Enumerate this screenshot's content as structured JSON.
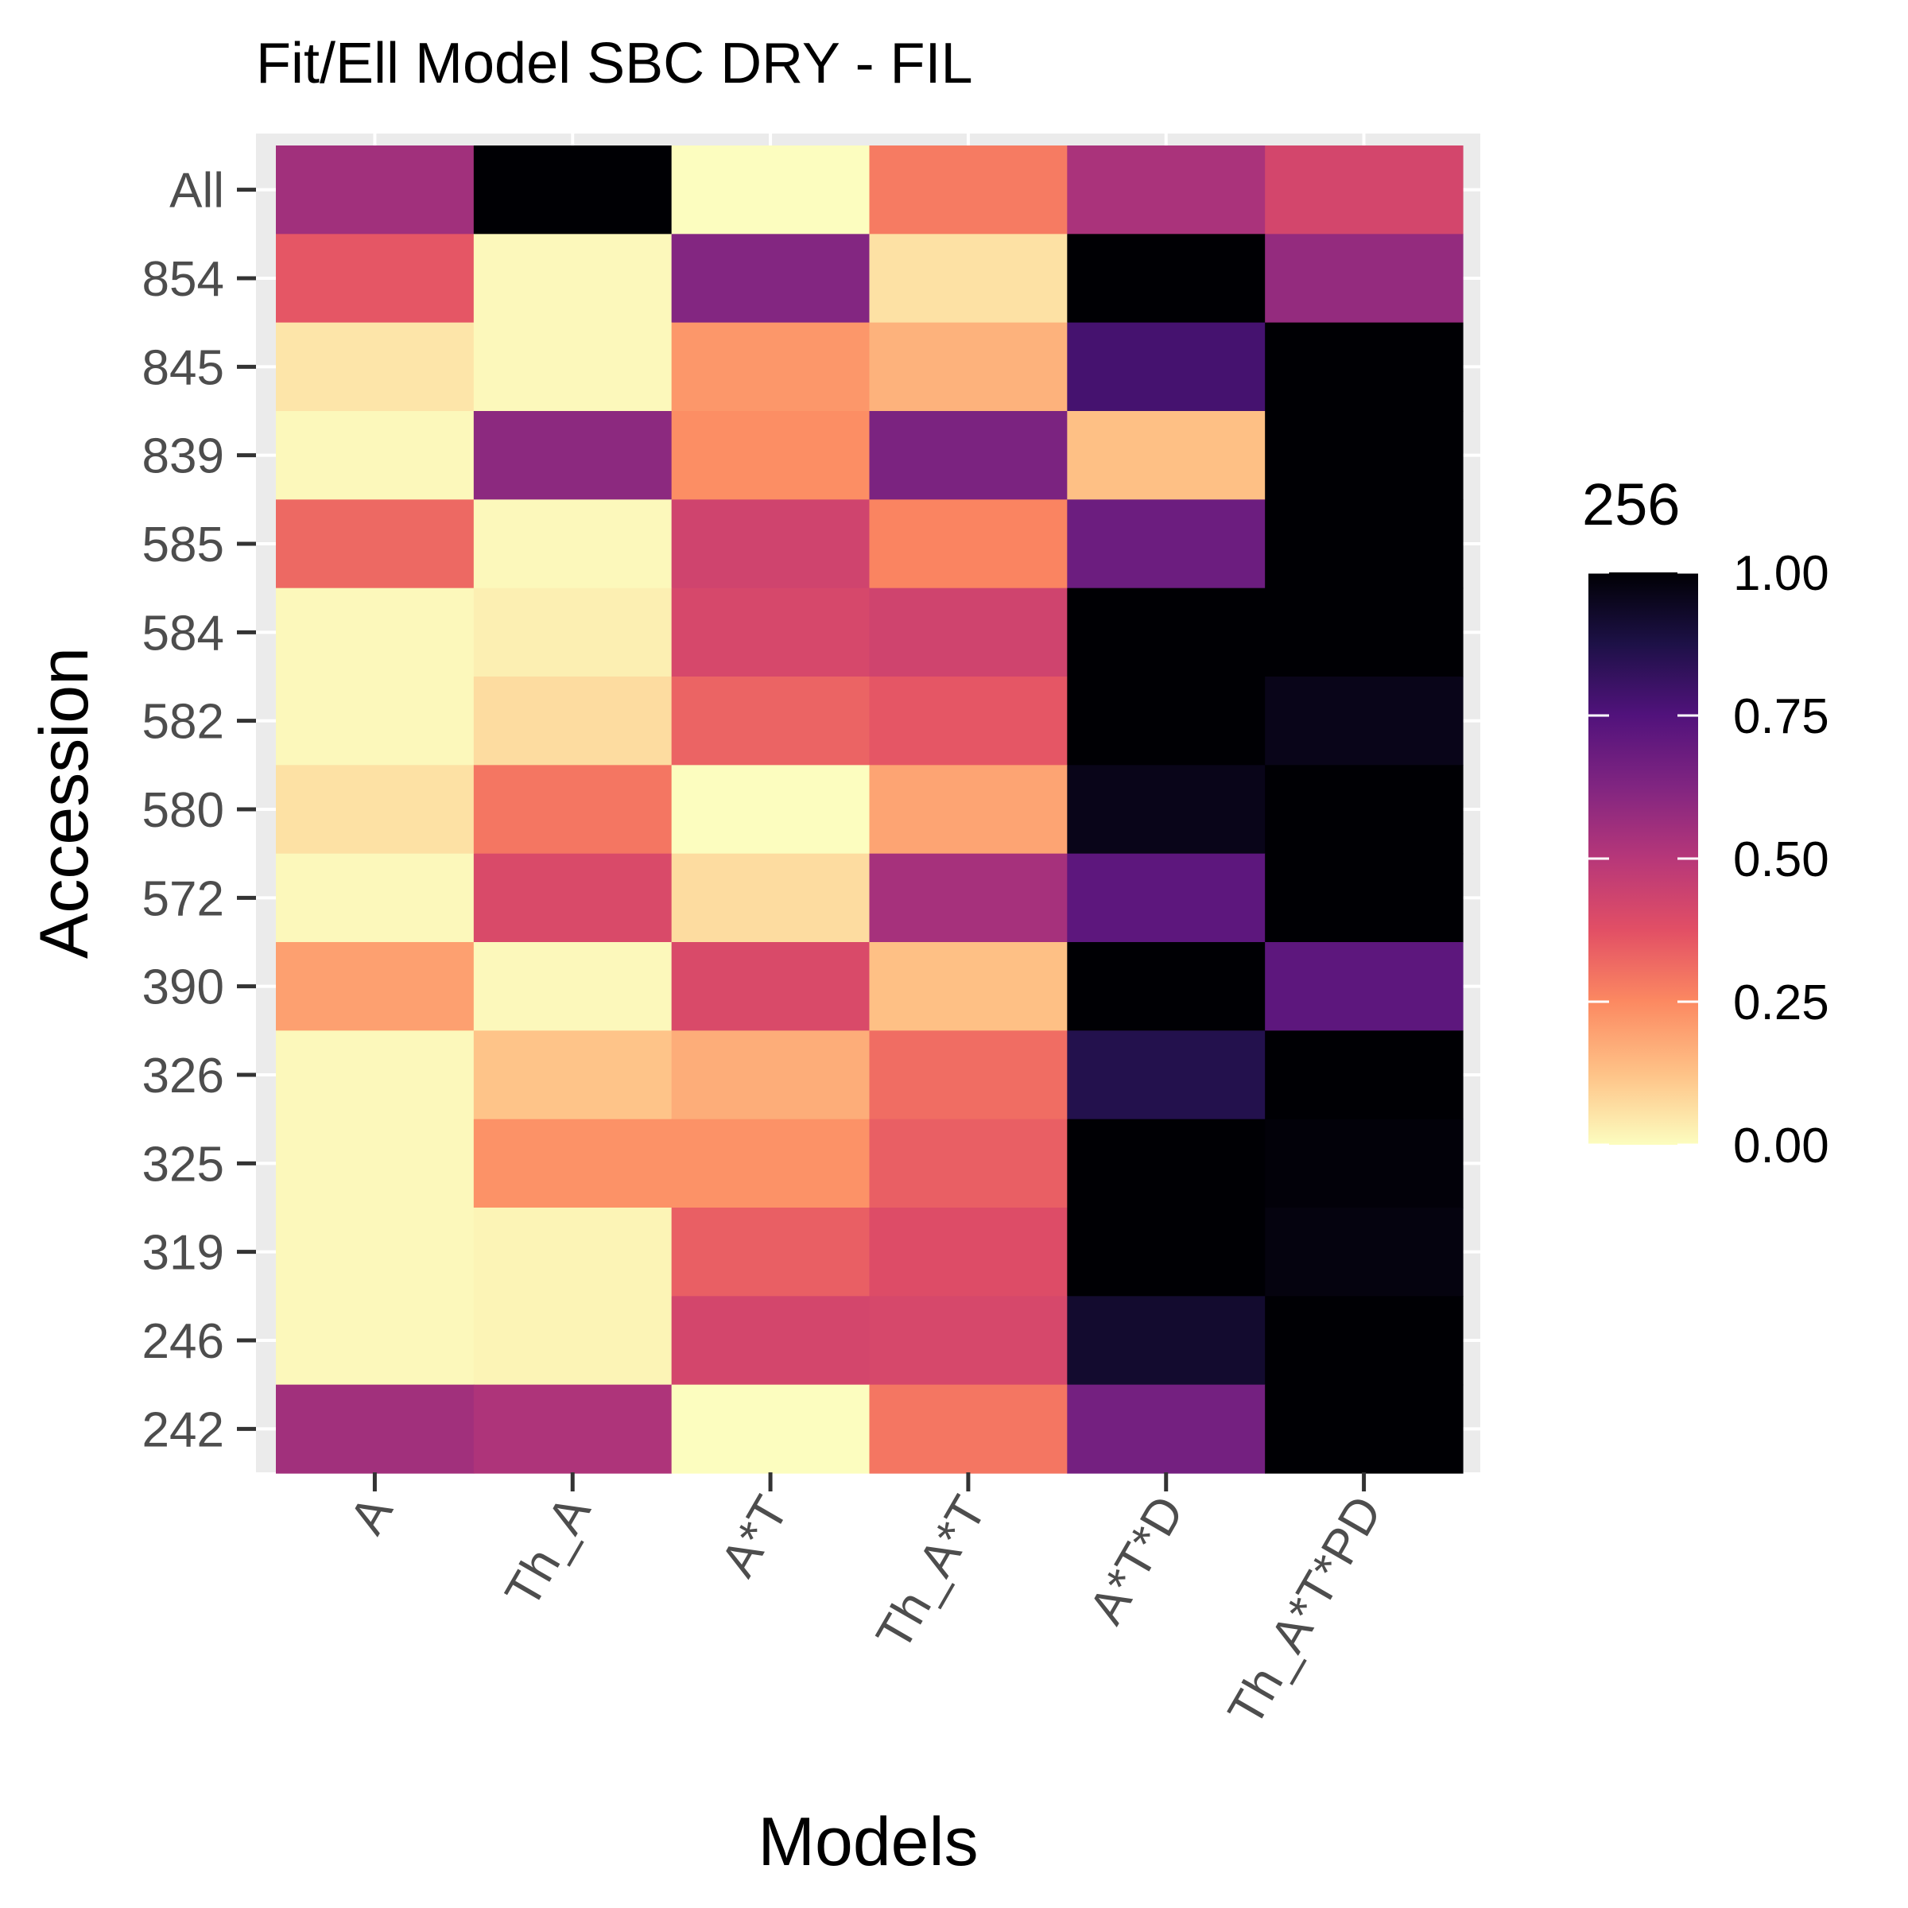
{
  "chart_data": {
    "type": "heatmap",
    "title": "Fit/Ell Model SBC DRY - FIL",
    "xlabel": "Models",
    "ylabel": "Accession",
    "x_categories": [
      "A",
      "Th_A",
      "A*T",
      "Th_A*T",
      "A*T*D",
      "Th_A*T*PD"
    ],
    "y_categories": [
      "All",
      "854",
      "845",
      "839",
      "585",
      "584",
      "582",
      "580",
      "572",
      "390",
      "326",
      "325",
      "319",
      "246",
      "242"
    ],
    "values": [
      [
        0.55,
        1.0,
        0.0,
        0.28,
        0.53,
        0.42
      ],
      [
        0.36,
        0.01,
        0.62,
        0.06,
        1.0,
        0.58
      ],
      [
        0.05,
        0.01,
        0.22,
        0.16,
        0.78,
        1.0
      ],
      [
        0.01,
        0.6,
        0.24,
        0.64,
        0.13,
        1.0
      ],
      [
        0.32,
        0.01,
        0.43,
        0.26,
        0.68,
        1.0
      ],
      [
        0.01,
        0.03,
        0.41,
        0.43,
        1.0,
        1.0
      ],
      [
        0.01,
        0.07,
        0.33,
        0.36,
        1.0,
        0.96
      ],
      [
        0.06,
        0.29,
        0.0,
        0.19,
        0.96,
        1.0
      ],
      [
        0.01,
        0.4,
        0.07,
        0.54,
        0.72,
        1.0
      ],
      [
        0.2,
        0.01,
        0.4,
        0.13,
        1.0,
        0.72
      ],
      [
        0.01,
        0.12,
        0.17,
        0.31,
        0.86,
        1.0
      ],
      [
        0.01,
        0.23,
        0.23,
        0.34,
        1.0,
        0.99
      ],
      [
        0.01,
        0.02,
        0.34,
        0.39,
        1.0,
        0.98
      ],
      [
        0.01,
        0.02,
        0.42,
        0.41,
        0.92,
        1.0
      ],
      [
        0.55,
        0.52,
        0.0,
        0.29,
        0.66,
        1.0
      ]
    ],
    "legend": {
      "title": "256",
      "ticks": [
        1.0,
        0.75,
        0.5,
        0.25,
        0.0
      ],
      "tick_labels": [
        "1.00",
        "0.75",
        "0.50",
        "0.25",
        "0.00"
      ],
      "range": [
        0,
        1
      ],
      "placement": "right"
    },
    "colormap": [
      "#fcfdbf",
      "#fec287",
      "#fc8961",
      "#e24f65",
      "#b73779",
      "#812581",
      "#51127c",
      "#1d1147",
      "#000004"
    ],
    "panel_background": "#ebebeb",
    "grid": true
  }
}
